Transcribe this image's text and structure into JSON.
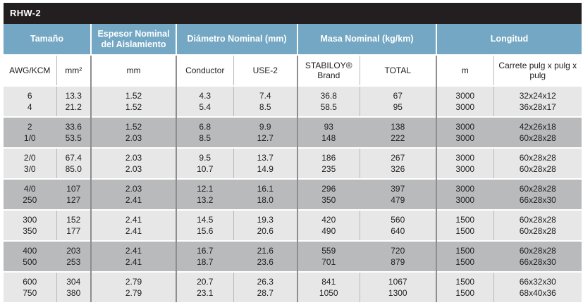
{
  "title": "RHW-2",
  "groups": [
    {
      "label": "Tamaño"
    },
    {
      "label": "Espesor Nominal del Aislamiento"
    },
    {
      "label": "Diámetro Nominal (mm)"
    },
    {
      "label": "Masa Nominal (kg/km)"
    },
    {
      "label": "Longitud"
    }
  ],
  "subheaders": [
    "AWG/KCM",
    "mm²",
    "mm",
    "Conductor",
    "USE-2",
    "STABILOY® Brand",
    "TOTAL",
    "m",
    "Carrete pulg x pulg x pulg"
  ],
  "rows": [
    {
      "awg": [
        "6",
        "4"
      ],
      "mm2": [
        "13.3",
        "21.2"
      ],
      "esp": [
        "1.52",
        "1.52"
      ],
      "cond": [
        "4.3",
        "5.4"
      ],
      "use2": [
        "7.4",
        "8.5"
      ],
      "stab": [
        "36.8",
        "58.5"
      ],
      "total": [
        "67",
        "95"
      ],
      "m": [
        "3000",
        "3000"
      ],
      "carrete": [
        "32x24x12",
        "36x28x17"
      ]
    },
    {
      "awg": [
        "2",
        "1/0"
      ],
      "mm2": [
        "33.6",
        "53.5"
      ],
      "esp": [
        "1.52",
        "2.03"
      ],
      "cond": [
        "6.8",
        "8.5"
      ],
      "use2": [
        "9.9",
        "12.7"
      ],
      "stab": [
        "93",
        "148"
      ],
      "total": [
        "138",
        "222"
      ],
      "m": [
        "3000",
        "3000"
      ],
      "carrete": [
        "42x26x18",
        "60x28x28"
      ]
    },
    {
      "awg": [
        "2/0",
        "3/0"
      ],
      "mm2": [
        "67.4",
        "85.0"
      ],
      "esp": [
        "2.03",
        "2.03"
      ],
      "cond": [
        "9.5",
        "10.7"
      ],
      "use2": [
        "13.7",
        "14.9"
      ],
      "stab": [
        "186",
        "235"
      ],
      "total": [
        "267",
        "326"
      ],
      "m": [
        "3000",
        "3000"
      ],
      "carrete": [
        "60x28x28",
        "60x28x28"
      ]
    },
    {
      "awg": [
        "4/0",
        "250"
      ],
      "mm2": [
        "107",
        "127"
      ],
      "esp": [
        "2.03",
        "2.41"
      ],
      "cond": [
        "12.1",
        "13.2"
      ],
      "use2": [
        "16.1",
        "18.0"
      ],
      "stab": [
        "296",
        "350"
      ],
      "total": [
        "397",
        "479"
      ],
      "m": [
        "3000",
        "3000"
      ],
      "carrete": [
        "60x28x28",
        "66x28x30"
      ]
    },
    {
      "awg": [
        "300",
        "350"
      ],
      "mm2": [
        "152",
        "177"
      ],
      "esp": [
        "2.41",
        "2.41"
      ],
      "cond": [
        "14.5",
        "15.6"
      ],
      "use2": [
        "19.3",
        "20.6"
      ],
      "stab": [
        "420",
        "490"
      ],
      "total": [
        "560",
        "640"
      ],
      "m": [
        "1500",
        "1500"
      ],
      "carrete": [
        "60x28x28",
        "60x28x28"
      ]
    },
    {
      "awg": [
        "400",
        "500"
      ],
      "mm2": [
        "203",
        "253"
      ],
      "esp": [
        "2.41",
        "2.41"
      ],
      "cond": [
        "16.7",
        "18.7"
      ],
      "use2": [
        "21.6",
        "23.6"
      ],
      "stab": [
        "559",
        "701"
      ],
      "total": [
        "720",
        "879"
      ],
      "m": [
        "1500",
        "1500"
      ],
      "carrete": [
        "60x28x28",
        "66x28x30"
      ]
    },
    {
      "awg": [
        "600",
        "750"
      ],
      "mm2": [
        "304",
        "380"
      ],
      "esp": [
        "2.79",
        "2.79"
      ],
      "cond": [
        "20.7",
        "23.1"
      ],
      "use2": [
        "26.3",
        "28.7"
      ],
      "stab": [
        "841",
        "1050"
      ],
      "total": [
        "1067",
        "1300"
      ],
      "m": [
        "1500",
        "1500"
      ],
      "carrete": [
        "66x32x30",
        "68x40x36"
      ]
    }
  ]
}
